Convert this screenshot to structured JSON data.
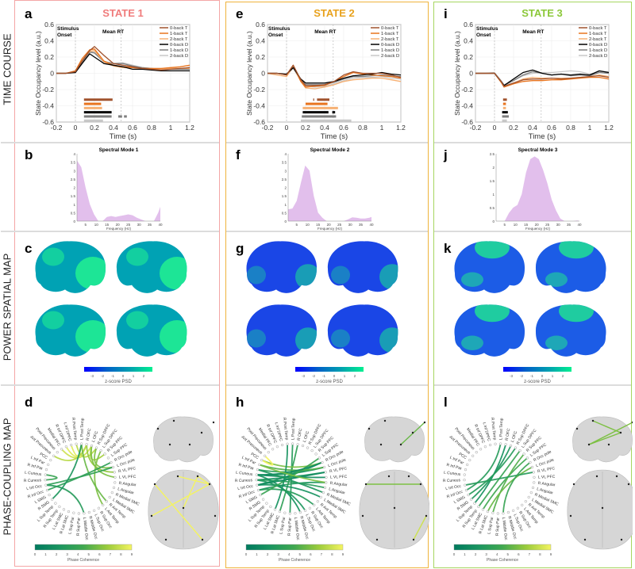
{
  "row_labels": [
    "TIME COURSE",
    "POWER SPATIAL MAP",
    "PHASE-COUPLING MAP"
  ],
  "colors": {
    "series": [
      "#a0522d",
      "#e8741e",
      "#f6b073",
      "#000000",
      "#7f7f7f",
      "#c8c8c8"
    ],
    "spectral_fill": "#e2bfec",
    "psd_cmap": [
      "#0000ff",
      "#0060c8",
      "#00a0b0",
      "#00f090"
    ],
    "coh_cmap": [
      "#007a5e",
      "#1a9560",
      "#40a850",
      "#9ccc3c",
      "#f4f460"
    ]
  },
  "common": {
    "stimulus_onset": [
      "Stimulus",
      "Onset"
    ],
    "mean_rt": "Mean RT",
    "ylabel": "State Occupancy level (a.u.)",
    "xlabel": "Time (s)",
    "x_ticks": [
      "-0.2",
      "0",
      "0.2",
      "0.4",
      "0.6",
      "0.8",
      "1",
      "1.2"
    ],
    "y_ticks": [
      "0.6",
      "0.4",
      "0.2",
      "0",
      "-0.2",
      "-0.4",
      "-0.6"
    ],
    "legend": [
      "0-back T",
      "1-back T",
      "2-back T",
      "0-back D",
      "1-back D",
      "2-back D"
    ],
    "spec_xlabel": "Frequency (Hz)",
    "spec_x_ticks": [
      "5",
      "10",
      "15",
      "20",
      "25",
      "30",
      "35",
      "40"
    ],
    "psd_label": "z-score PSD",
    "psd_ticks": [
      "-3",
      "-2",
      "-1",
      "0",
      "1",
      "2"
    ],
    "coh_label": "Phase Coherence",
    "coh_ticks": [
      "0",
      "1",
      "2",
      "3",
      "4",
      "5",
      "6",
      "7",
      "8",
      "9"
    ],
    "regions": [
      "L Post Temp",
      "R OFC",
      "L OFC",
      "R Sup DPFC",
      "L Sup DPFC",
      "R Sup PFC",
      "L Sup PFC",
      "R Occ pole",
      "L Occ pole",
      "R VL PFC",
      "L VL PFC",
      "R Angular",
      "L Angular",
      "R Medial SMC",
      "L Medial SMC",
      "R Ant Temp",
      "L Ant Temp",
      "R Sup Occ",
      "L Sup Occ",
      "R Middle Occ",
      "L Middle Occ",
      "R Sup Par",
      "L Sup Par",
      "R Lat SMC",
      "L Lat SMC",
      "R Sup Temp",
      "L Sup Temp",
      "R SMG",
      "L SMG",
      "R Inf Occ",
      "L Inf Occ",
      "R Cuneus",
      "L Cuneus",
      "R Inf Par",
      "L Inf Par",
      "PCC",
      "Ant Precuneus",
      "Post Precuneus",
      "Medial PFC",
      "R Inf DPFC",
      "L Inf DPFC",
      "R Post Temp"
    ]
  },
  "states": [
    {
      "title": "STATE 1",
      "title_color": "#f07c7c",
      "border_color": "#f4a6a6",
      "letters": [
        "a",
        "b",
        "c",
        "d"
      ],
      "spectral_title": "Spectral Mode 1",
      "mean_rt_value": 0.48,
      "psd_base": "#00a2b4",
      "psd_patch": "#20ec92",
      "chart_data": {
        "type": "line",
        "x": [
          -0.2,
          -0.1,
          0,
          0.07,
          0.15,
          0.2,
          0.3,
          0.4,
          0.5,
          0.6,
          0.7,
          0.8,
          0.9,
          1.0,
          1.1,
          1.2
        ],
        "xlim": [
          -0.2,
          1.2
        ],
        "ylim": [
          -0.6,
          0.6
        ],
        "series": [
          {
            "name": "0-back T",
            "values": [
              0,
              0,
              0.02,
              0.15,
              0.28,
              0.33,
              0.22,
              0.12,
              0.1,
              0.08,
              0.06,
              0.05,
              0.04,
              0.05,
              0.06,
              0.07
            ]
          },
          {
            "name": "1-back T",
            "values": [
              0,
              0,
              0.03,
              0.18,
              0.29,
              0.3,
              0.15,
              0.1,
              0.08,
              0.07,
              0.06,
              0.06,
              0.06,
              0.07,
              0.08,
              0.1
            ]
          },
          {
            "name": "2-back T",
            "values": [
              0,
              0,
              0.02,
              0.16,
              0.27,
              0.28,
              0.14,
              0.09,
              0.07,
              0.07,
              0.06,
              0.05,
              0.05,
              0.06,
              0.06,
              0.06
            ]
          },
          {
            "name": "0-back D",
            "values": [
              0,
              0,
              0.01,
              0.12,
              0.24,
              0.2,
              0.12,
              0.1,
              0.08,
              0.05,
              0.05,
              0.04,
              0.03,
              0.03,
              0.03,
              0.03
            ]
          },
          {
            "name": "1-back D",
            "values": [
              0,
              0,
              0.01,
              0.14,
              0.26,
              0.25,
              0.14,
              0.12,
              0.12,
              0.09,
              0.07,
              0.06,
              0.05,
              0.05,
              0.05,
              0.05
            ]
          },
          {
            "name": "2-back D",
            "values": [
              0,
              0,
              0.01,
              0.15,
              0.27,
              0.26,
              0.15,
              0.12,
              0.13,
              0.1,
              0.07,
              0.06,
              0.06,
              0.06,
              0.06,
              0.07
            ]
          }
        ],
        "significance": [
          [
            [
              0.09,
              0.39
            ]
          ],
          [
            [
              0.09,
              0.27
            ]
          ],
          [
            [
              0.09,
              0.28
            ]
          ],
          [
            [
              0.09,
              0.38
            ]
          ],
          [
            [
              0.09,
              0.38
            ],
            [
              0.45,
              0.49
            ],
            [
              0.51,
              0.54
            ]
          ],
          [
            [
              0.09,
              0.29
            ]
          ]
        ]
      },
      "spectral_data": {
        "type": "area",
        "x": [
          1,
          3,
          5,
          7,
          9,
          11,
          13,
          15,
          17,
          19,
          21,
          23,
          25,
          27,
          29,
          31,
          33,
          35,
          37,
          39,
          40
        ],
        "y": [
          3.6,
          3.2,
          2.0,
          1.0,
          0.4,
          0,
          0,
          0.25,
          0.3,
          0.25,
          0.3,
          0.35,
          0.4,
          0.35,
          0.2,
          0.1,
          0,
          0,
          0,
          0.5,
          0.85
        ],
        "ylim": [
          0,
          4
        ],
        "y_ticks": [
          "0",
          "0.5",
          "1",
          "1.5",
          "2",
          "2.5",
          "3",
          "3.5",
          "4"
        ]
      },
      "connections": [
        [
          2,
          38,
          8
        ],
        [
          1,
          39,
          8.5
        ],
        [
          0,
          40,
          8.5
        ],
        [
          41,
          3,
          7.5
        ],
        [
          2,
          5,
          7
        ],
        [
          1,
          9,
          6.5
        ],
        [
          2,
          10,
          6
        ],
        [
          3,
          8,
          6
        ],
        [
          1,
          36,
          7.5
        ],
        [
          4,
          16,
          6
        ],
        [
          0,
          15,
          5.5
        ],
        [
          8,
          30,
          3.5
        ],
        [
          7,
          29,
          3.5
        ],
        [
          32,
          31,
          4
        ],
        [
          30,
          20,
          3
        ],
        [
          0,
          27,
          2.5
        ]
      ]
    },
    {
      "title": "STATE 2",
      "title_color": "#e8a21e",
      "border_color": "#efb43c",
      "letters": [
        "e",
        "f",
        "g",
        "h"
      ],
      "spectral_title": "Spectral Mode 2",
      "mean_rt_value": 0.49,
      "psd_base": "#1a46e6",
      "psd_patch": "#1aa6b0",
      "chart_data": {
        "type": "line",
        "x": [
          -0.2,
          -0.1,
          0,
          0.07,
          0.15,
          0.2,
          0.3,
          0.4,
          0.5,
          0.6,
          0.7,
          0.8,
          0.9,
          1.0,
          1.1,
          1.2
        ],
        "xlim": [
          -0.2,
          1.2
        ],
        "ylim": [
          -0.6,
          0.6
        ],
        "series": [
          {
            "name": "0-back T",
            "values": [
              0,
              0,
              -0.02,
              0.1,
              -0.08,
              -0.15,
              -0.15,
              -0.14,
              -0.1,
              -0.02,
              0.02,
              0,
              0,
              0,
              -0.02,
              -0.05
            ]
          },
          {
            "name": "1-back T",
            "values": [
              0,
              0,
              -0.02,
              0.1,
              -0.1,
              -0.17,
              -0.16,
              -0.15,
              -0.1,
              -0.04,
              0.01,
              -0.01,
              -0.02,
              -0.03,
              -0.04,
              -0.06
            ]
          },
          {
            "name": "2-back T",
            "values": [
              0,
              -0.02,
              -0.04,
              0.08,
              -0.1,
              -0.18,
              -0.19,
              -0.17,
              -0.14,
              -0.1,
              -0.08,
              -0.07,
              -0.06,
              -0.06,
              -0.08,
              -0.1
            ]
          },
          {
            "name": "0-back D",
            "values": [
              0,
              0,
              -0.01,
              0.07,
              -0.07,
              -0.12,
              -0.12,
              -0.12,
              -0.1,
              -0.06,
              -0.03,
              -0.02,
              -0.01,
              0.01,
              -0.01,
              -0.02
            ]
          },
          {
            "name": "1-back D",
            "values": [
              0,
              0,
              -0.02,
              0.07,
              -0.08,
              -0.14,
              -0.14,
              -0.14,
              -0.11,
              -0.07,
              -0.04,
              -0.04,
              -0.03,
              -0.02,
              -0.03,
              -0.04
            ]
          },
          {
            "name": "2-back D",
            "values": [
              0,
              0,
              -0.02,
              0.06,
              -0.09,
              -0.16,
              -0.17,
              -0.16,
              -0.13,
              -0.09,
              -0.06,
              -0.05,
              -0.05,
              -0.04,
              -0.06,
              -0.07
            ]
          }
        ],
        "significance": [
          [
            [
              0.28,
              0.29
            ],
            [
              0.32,
              0.45
            ]
          ],
          [
            [
              0.2,
              0.43
            ]
          ],
          [
            [
              0.17,
              0.54
            ]
          ],
          [
            [
              0.17,
              0.44
            ],
            [
              0.48,
              0.51
            ]
          ],
          [
            [
              0.16,
              0.52
            ]
          ],
          [
            [
              0.15,
              0.68
            ]
          ]
        ]
      },
      "spectral_data": {
        "type": "area",
        "x": [
          1,
          3,
          5,
          7,
          9,
          11,
          13,
          15,
          17,
          19,
          21,
          23,
          25,
          27,
          29,
          31,
          33,
          35,
          37,
          39,
          40
        ],
        "y": [
          0.7,
          0.75,
          1.2,
          2.3,
          3.3,
          3.0,
          1.5,
          0.5,
          0.2,
          0,
          0,
          0,
          0,
          0,
          0.1,
          0.22,
          0.2,
          0.15,
          0.15,
          0.2,
          0.25
        ],
        "ylim": [
          0,
          4
        ],
        "y_ticks": [
          "0",
          "0.5",
          "1",
          "1.5",
          "2",
          "2.5",
          "3",
          "3.5",
          "4"
        ]
      },
      "connections": [
        [
          32,
          8,
          2
        ],
        [
          31,
          9,
          2
        ],
        [
          32,
          10,
          1.5
        ],
        [
          30,
          7,
          2
        ],
        [
          29,
          11,
          2.5
        ],
        [
          31,
          12,
          3
        ],
        [
          33,
          8,
          3
        ],
        [
          0,
          21,
          3
        ],
        [
          1,
          23,
          3.5
        ],
        [
          34,
          8,
          5
        ],
        [
          35,
          7,
          6
        ],
        [
          35,
          36,
          9
        ],
        [
          30,
          14,
          2
        ],
        [
          31,
          18,
          2.5
        ],
        [
          32,
          19,
          2
        ],
        [
          29,
          16,
          3
        ],
        [
          28,
          6,
          4
        ],
        [
          33,
          13,
          2.5
        ],
        [
          41,
          24,
          2
        ],
        [
          32,
          7,
          1.5
        ],
        [
          30,
          9,
          1.5
        ],
        [
          34,
          11,
          6
        ]
      ]
    },
    {
      "title": "STATE 3",
      "title_color": "#8cc83a",
      "border_color": "#a6d660",
      "letters": [
        "i",
        "j",
        "k",
        "l"
      ],
      "spectral_title": "Spectral Mode 3",
      "mean_rt_value": 0.49,
      "psd_base": "#1c5ce6",
      "psd_patch": "#20d898",
      "chart_data": {
        "type": "line",
        "x": [
          -0.2,
          -0.1,
          0,
          0.07,
          0.1,
          0.2,
          0.3,
          0.4,
          0.5,
          0.6,
          0.7,
          0.8,
          0.9,
          1.0,
          1.1,
          1.2
        ],
        "xlim": [
          -0.2,
          1.2
        ],
        "ylim": [
          -0.6,
          0.6
        ],
        "series": [
          {
            "name": "0-back T",
            "values": [
              0,
              0,
              0,
              -0.1,
              -0.16,
              -0.12,
              -0.08,
              -0.07,
              -0.07,
              -0.06,
              -0.07,
              -0.06,
              -0.05,
              -0.04,
              -0.03,
              -0.05
            ]
          },
          {
            "name": "1-back T",
            "values": [
              0,
              0,
              0,
              -0.11,
              -0.17,
              -0.13,
              -0.1,
              -0.09,
              -0.09,
              -0.08,
              -0.08,
              -0.07,
              -0.06,
              -0.05,
              -0.05,
              -0.07
            ]
          },
          {
            "name": "2-back T",
            "values": [
              0,
              0,
              0,
              -0.11,
              -0.16,
              -0.12,
              -0.07,
              -0.05,
              -0.06,
              -0.06,
              -0.06,
              -0.06,
              -0.05,
              -0.04,
              -0.02,
              -0.04
            ]
          },
          {
            "name": "0-back D",
            "values": [
              0,
              0,
              0,
              -0.1,
              -0.15,
              -0.07,
              0.01,
              0.04,
              0.0,
              -0.02,
              -0.01,
              -0.02,
              -0.01,
              -0.02,
              0.03,
              0.01
            ]
          },
          {
            "name": "1-back D",
            "values": [
              0,
              0,
              0,
              -0.1,
              -0.15,
              -0.09,
              -0.02,
              0.02,
              0.0,
              -0.02,
              -0.01,
              -0.03,
              -0.02,
              -0.03,
              0.01,
              0
            ]
          },
          {
            "name": "2-back D",
            "values": [
              0,
              0,
              0.01,
              -0.09,
              -0.14,
              -0.09,
              -0.03,
              0.0,
              0.01,
              0.01,
              0.02,
              0.03,
              0.02,
              -0.01,
              0.02,
              0.02
            ]
          }
        ],
        "significance": [
          [
            [
              0.09,
              0.13
            ]
          ],
          [
            [
              0.09,
              0.12
            ]
          ],
          [
            [
              0.09,
              0.12
            ]
          ],
          [
            [
              0.08,
              0.14
            ]
          ],
          [
            [
              0.08,
              0.15
            ]
          ],
          [
            [
              0.08,
              0.13
            ]
          ]
        ]
      },
      "spectral_data": {
        "type": "area",
        "x": [
          1,
          3,
          5,
          7,
          9,
          11,
          13,
          15,
          17,
          19,
          21,
          23,
          25,
          27,
          29,
          31,
          33,
          35,
          37,
          39,
          40
        ],
        "y": [
          0,
          0,
          0,
          0.3,
          0.5,
          0.6,
          1.0,
          1.8,
          2.3,
          2.4,
          2.3,
          1.9,
          1.4,
          0.8,
          0.4,
          0.1,
          0,
          0,
          0,
          0.02,
          0
        ],
        "ylim": [
          0,
          2.5
        ],
        "y_ticks": [
          "0",
          "0.5",
          "1",
          "1.5",
          "2",
          "2.5"
        ]
      },
      "connections": [
        [
          1,
          26,
          2
        ],
        [
          2,
          27,
          2.5
        ],
        [
          3,
          28,
          3
        ],
        [
          0,
          29,
          3
        ],
        [
          4,
          25,
          4
        ],
        [
          6,
          24,
          4.5
        ],
        [
          5,
          22,
          5
        ],
        [
          8,
          23,
          5.5
        ],
        [
          9,
          30,
          3
        ],
        [
          7,
          20,
          4
        ]
      ]
    }
  ]
}
